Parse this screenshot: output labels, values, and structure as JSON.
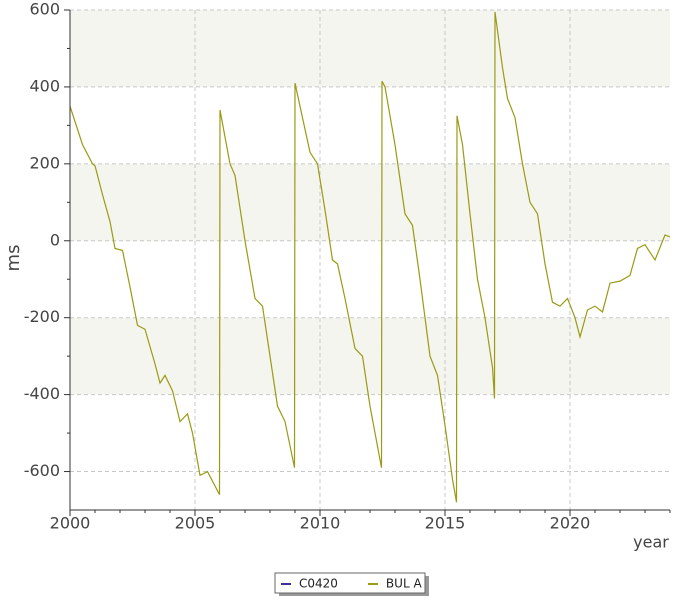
{
  "chart_data": {
    "type": "line",
    "x": [
      2000,
      2000.5,
      2000.9,
      2001,
      2001.3,
      2001.6,
      2001.8,
      2002.1,
      2002.4,
      2002.7,
      2003,
      2003.4,
      2003.6,
      2003.8,
      2004.1,
      2004.4,
      2004.7,
      2004.9,
      2005.2,
      2005.5,
      2005.98,
      2006,
      2006.4,
      2006.6,
      2007,
      2007.4,
      2007.7,
      2008,
      2008.3,
      2008.6,
      2008.98,
      2009,
      2009.3,
      2009.6,
      2009.9,
      2010.2,
      2010.5,
      2010.7,
      2011,
      2011.4,
      2011.7,
      2012,
      2012.46,
      2012.48,
      2012.6,
      2013,
      2013.4,
      2013.7,
      2014,
      2014.4,
      2014.7,
      2015,
      2015.3,
      2015.46,
      2015.48,
      2015.7,
      2016,
      2016.3,
      2016.6,
      2016.9,
      2016.98,
      2017,
      2017.3,
      2017.5,
      2017.8,
      2018.1,
      2018.4,
      2018.7,
      2019,
      2019.3,
      2019.6,
      2019.9,
      2020.2,
      2020.4,
      2020.7,
      2021,
      2021.3,
      2021.6,
      2022,
      2022.4,
      2022.7,
      2023,
      2023.4,
      2023.8,
      2024
    ],
    "series": [
      {
        "name": "C0420",
        "color": "#3a2fa0",
        "values": [
          null,
          null,
          null,
          null,
          null,
          null,
          null,
          null,
          null,
          null,
          null,
          null,
          null,
          null,
          null,
          null,
          null,
          null,
          null,
          null,
          null,
          null,
          null,
          null,
          null,
          null,
          null,
          null,
          null,
          null,
          null,
          null,
          null,
          null,
          null,
          null,
          null,
          null,
          null,
          null,
          null,
          null,
          null,
          null,
          null,
          null,
          null,
          null,
          null,
          null,
          null,
          null,
          null,
          null,
          null,
          null,
          null,
          null,
          null,
          null,
          null,
          null,
          null,
          null,
          null,
          null,
          null,
          null,
          null,
          null,
          null,
          null,
          null,
          null,
          null,
          null,
          null,
          null,
          null,
          null,
          null,
          null,
          null,
          null,
          null
        ]
      },
      {
        "name": "BUL A",
        "color": "#9a9a14",
        "values": [
          350,
          250,
          200,
          195,
          120,
          50,
          -20,
          -25,
          -120,
          -220,
          -230,
          -320,
          -370,
          -350,
          -390,
          -470,
          -450,
          -500,
          -610,
          -600,
          -660,
          340,
          200,
          170,
          0,
          -150,
          -170,
          -300,
          -430,
          -470,
          -590,
          410,
          320,
          230,
          200,
          80,
          -50,
          -60,
          -150,
          -280,
          -300,
          -430,
          -590,
          415,
          400,
          250,
          70,
          40,
          -100,
          -300,
          -350,
          -480,
          -620,
          -680,
          325,
          250,
          70,
          -100,
          -200,
          -330,
          -410,
          595,
          450,
          370,
          320,
          200,
          100,
          70,
          -60,
          -160,
          -170,
          -150,
          -200,
          -250,
          -180,
          -170,
          -185,
          -110,
          -105,
          -90,
          -20,
          -10,
          -50,
          15,
          10
        ]
      }
    ],
    "xlabel": "year",
    "ylabel": "ms",
    "xlim": [
      2000,
      2024
    ],
    "xticks": [
      2000,
      2005,
      2010,
      2015,
      2020
    ],
    "ylim": [
      -700,
      600
    ],
    "yticks": [
      -600,
      -400,
      -200,
      0,
      200,
      400,
      600
    ],
    "grid": true
  }
}
